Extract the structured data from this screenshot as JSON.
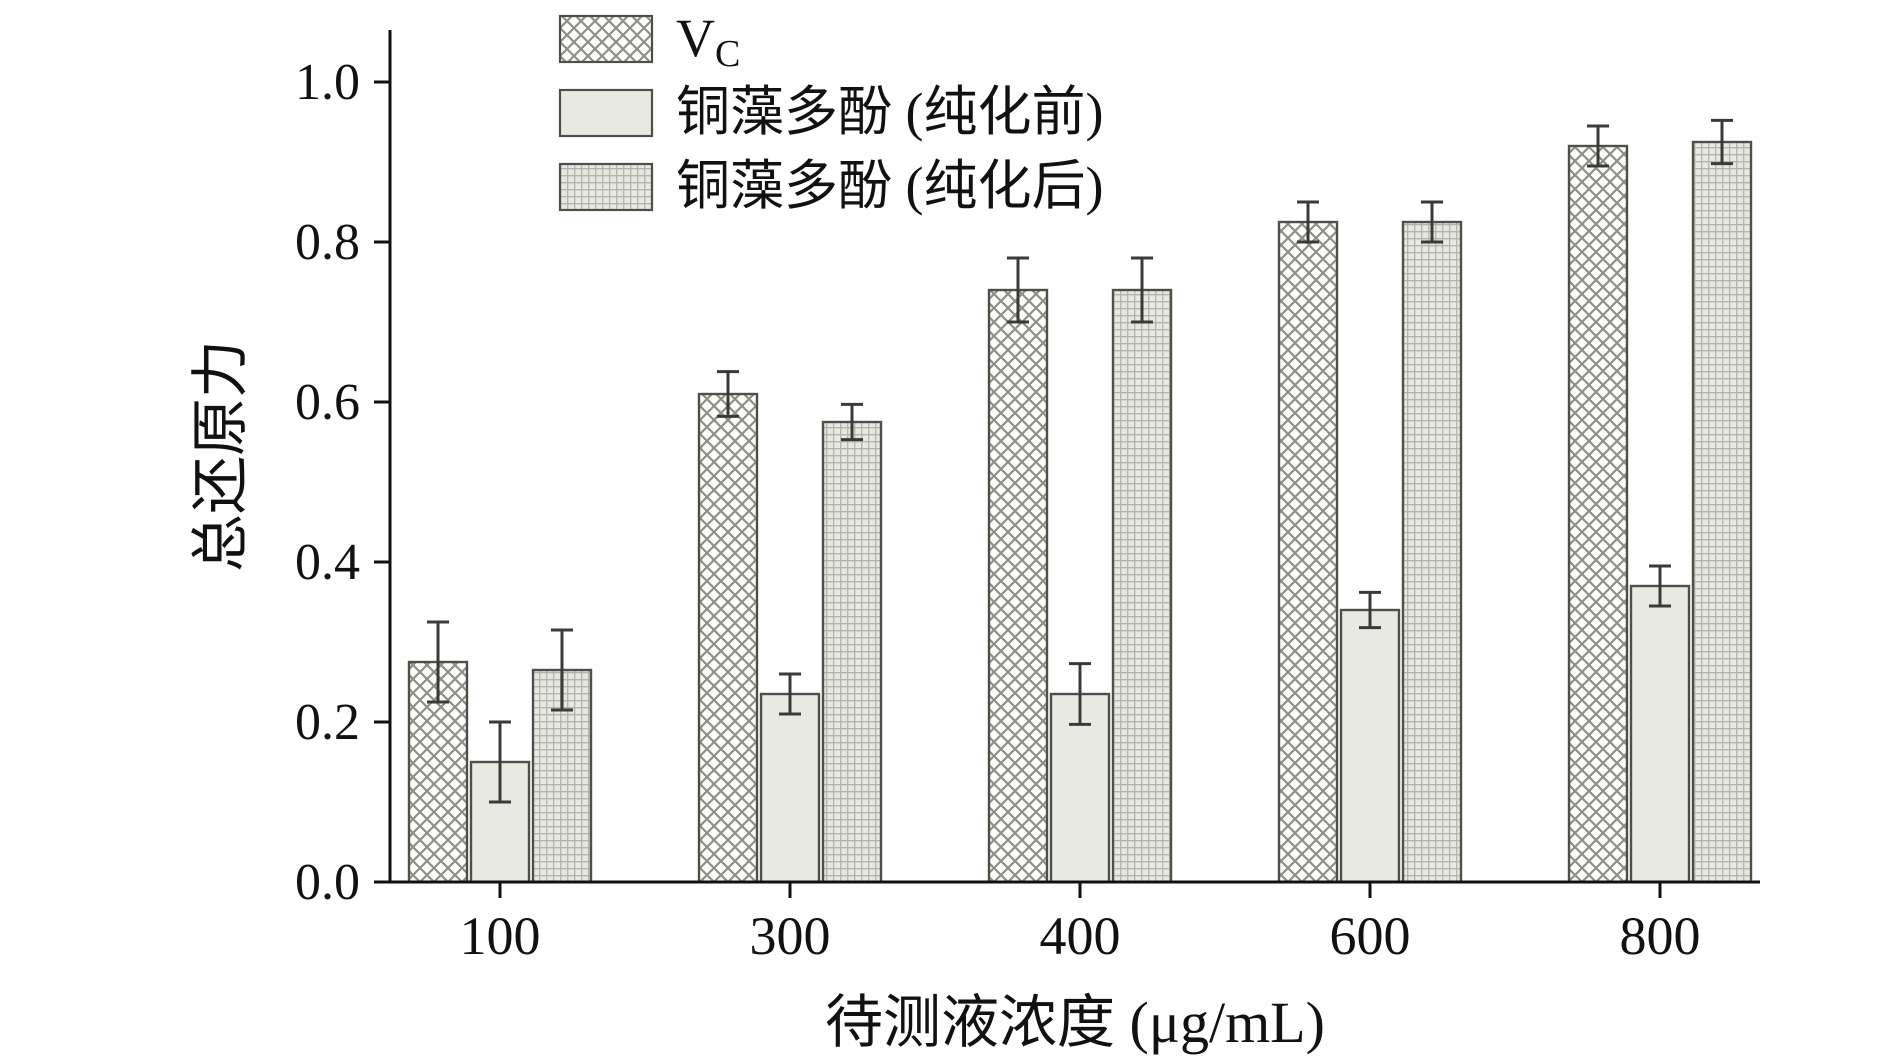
{
  "chart_data": {
    "type": "bar",
    "title": "",
    "xlabel": "待测液浓度 (μg/mL)",
    "ylabel": "总还原力",
    "categories": [
      "100",
      "300",
      "400",
      "600",
      "800"
    ],
    "ylim": [
      0,
      1.065
    ],
    "yticks": [
      0.0,
      0.2,
      0.4,
      0.6,
      0.8,
      1.0
    ],
    "grid": false,
    "legend_position": "top-left-inside",
    "series": [
      {
        "name": "Vc",
        "legend_main": "V",
        "legend_sub": "C",
        "pattern": "crosshatch",
        "values": [
          0.275,
          0.61,
          0.74,
          0.825,
          0.92
        ],
        "errors": [
          0.05,
          0.028,
          0.04,
          0.025,
          0.025
        ]
      },
      {
        "name": "铜藻多酚 (纯化前)",
        "legend_main": "铜藻多酚 (纯化前)",
        "legend_sub": "",
        "pattern": "plain",
        "values": [
          0.15,
          0.235,
          0.235,
          0.34,
          0.37
        ],
        "errors": [
          0.05,
          0.025,
          0.038,
          0.022,
          0.025
        ]
      },
      {
        "name": "铜藻多酚 (纯化后)",
        "legend_main": "铜藻多酚 (纯化后)",
        "legend_sub": "",
        "pattern": "grid",
        "values": [
          0.265,
          0.575,
          0.74,
          0.825,
          0.925
        ],
        "errors": [
          0.05,
          0.022,
          0.04,
          0.025,
          0.027
        ]
      }
    ],
    "colors": {
      "background": "#ffffff",
      "axis": "#111111",
      "text": "#111111",
      "bar_outline": "#4f4f49",
      "plain_fill": "#e9e9e3",
      "crosshatch_bg": "#fdfdfb",
      "pattern_line": "#8f8f88",
      "grid_fill": "#e8e8e2",
      "grid_line": "#b4b4ac",
      "error_bar": "#3a3a38"
    }
  }
}
